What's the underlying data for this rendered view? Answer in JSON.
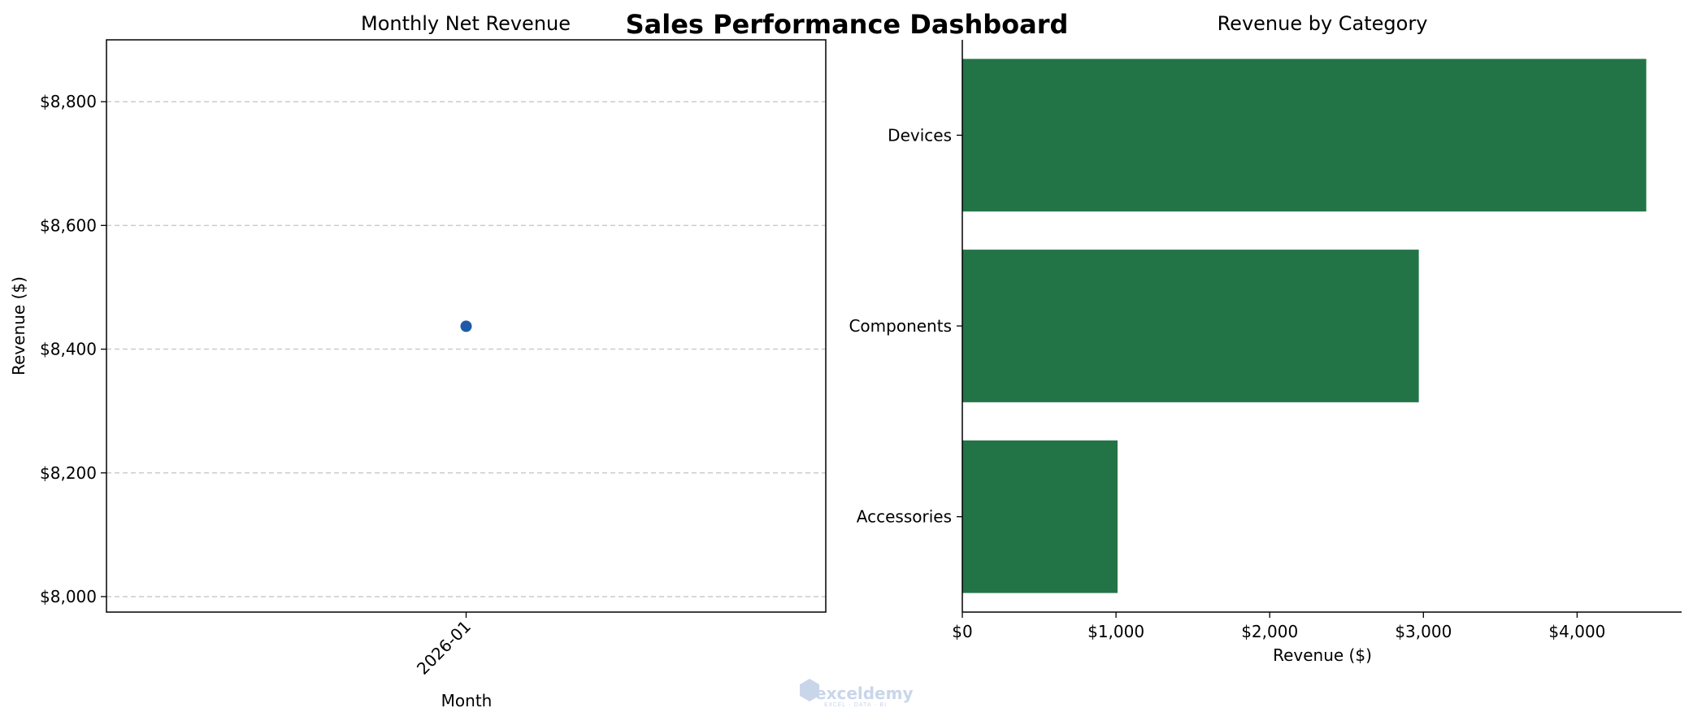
{
  "dashboard_title": "Sales Performance Dashboard",
  "watermark": {
    "name": "exceldemy",
    "tagline": "EXCEL · DATA · BI"
  },
  "chart_data": [
    {
      "type": "line",
      "title": "Monthly Net Revenue",
      "xlabel": "Month",
      "ylabel": "Revenue ($)",
      "x": [
        "2026-01"
      ],
      "series": [
        {
          "values": [
            8437
          ],
          "color": "#1f5aa6"
        }
      ],
      "ylim": [
        7975,
        8900
      ],
      "yticks": [
        8000,
        8200,
        8400,
        8600,
        8800
      ],
      "ytick_labels": [
        "$8,000",
        "$8,200",
        "$8,400",
        "$8,600",
        "$8,800"
      ],
      "grid": "y-dashed"
    },
    {
      "type": "bar",
      "orientation": "horizontal",
      "title": "Revenue by Category",
      "xlabel": "Revenue ($)",
      "ylabel": "",
      "categories": [
        "Accessories",
        "Components",
        "Devices"
      ],
      "values": [
        1010,
        2970,
        4450
      ],
      "color": "#227447",
      "xlim": [
        0,
        4680
      ],
      "xticks": [
        0,
        1000,
        2000,
        3000,
        4000
      ],
      "xtick_labels": [
        "$0",
        "$1,000",
        "$2,000",
        "$3,000",
        "$4,000"
      ]
    }
  ]
}
